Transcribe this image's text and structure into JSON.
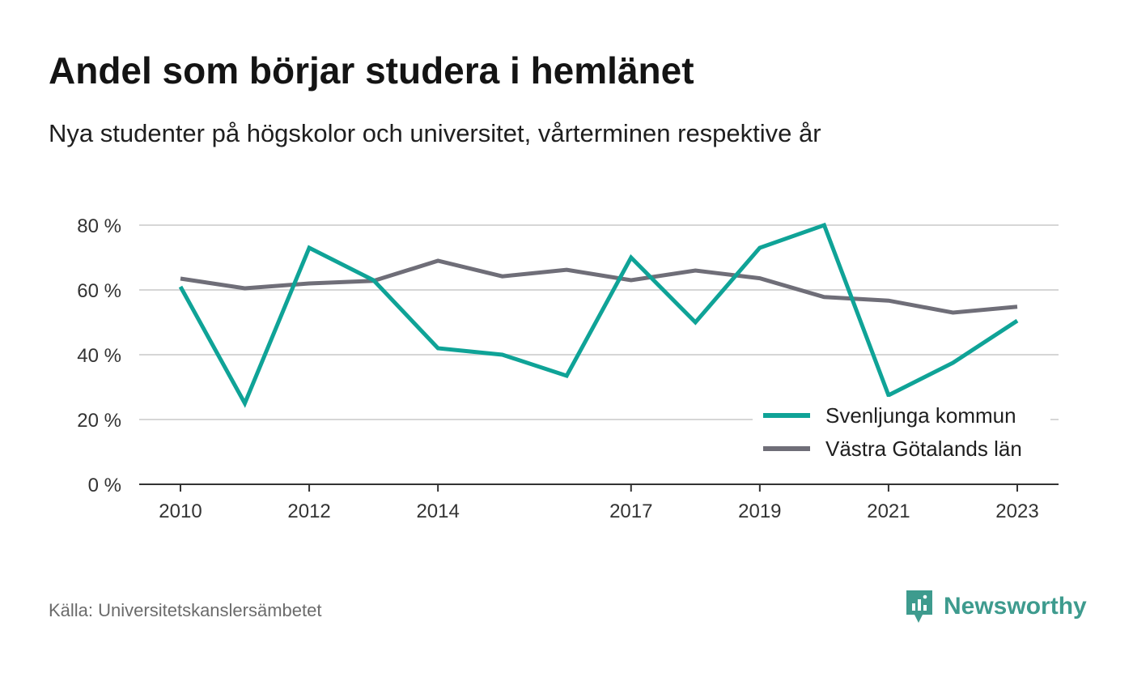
{
  "header": {
    "title": "Andel som börjar studera i hemlänet",
    "subtitle": "Nya studenter på högskolor och universitet, vårterminen respektive år"
  },
  "footer": {
    "source": "Källa: Universitetskanslersämbetet",
    "brand": "Newsworthy"
  },
  "colors": {
    "series_1": "#0fa397",
    "series_2": "#6f6e78",
    "grid": "#d6d6d6",
    "axis": "#333333",
    "brand": "#3e9b8e"
  },
  "chart_data": {
    "type": "line",
    "title": "Andel som börjar studera i hemlänet",
    "subtitle": "Nya studenter på högskolor och universitet, vårterminen respektive år",
    "x": [
      2010,
      2011,
      2012,
      2013,
      2014,
      2015,
      2016,
      2017,
      2018,
      2019,
      2020,
      2021,
      2022,
      2023
    ],
    "x_tick_labels": [
      "2010",
      "2012",
      "2014",
      "2017",
      "2019",
      "2021",
      "2023"
    ],
    "y_ticks": [
      0,
      20,
      40,
      60,
      80
    ],
    "y_tick_format": "{v} %",
    "ylim": [
      0,
      80
    ],
    "grid": true,
    "legend_position": "bottom-right",
    "series": [
      {
        "name": "Svenljunga kommun",
        "color": "#0fa397",
        "values": [
          61,
          25,
          73,
          63,
          42,
          40,
          33.5,
          70,
          50,
          73,
          80,
          27.5,
          37.5,
          50.5
        ]
      },
      {
        "name": "Västra Götalands län",
        "color": "#6f6e78",
        "values": [
          63.5,
          60.5,
          62,
          62.8,
          69,
          64.2,
          66.2,
          63,
          66,
          63.6,
          57.8,
          56.7,
          53,
          54.8
        ]
      }
    ]
  }
}
